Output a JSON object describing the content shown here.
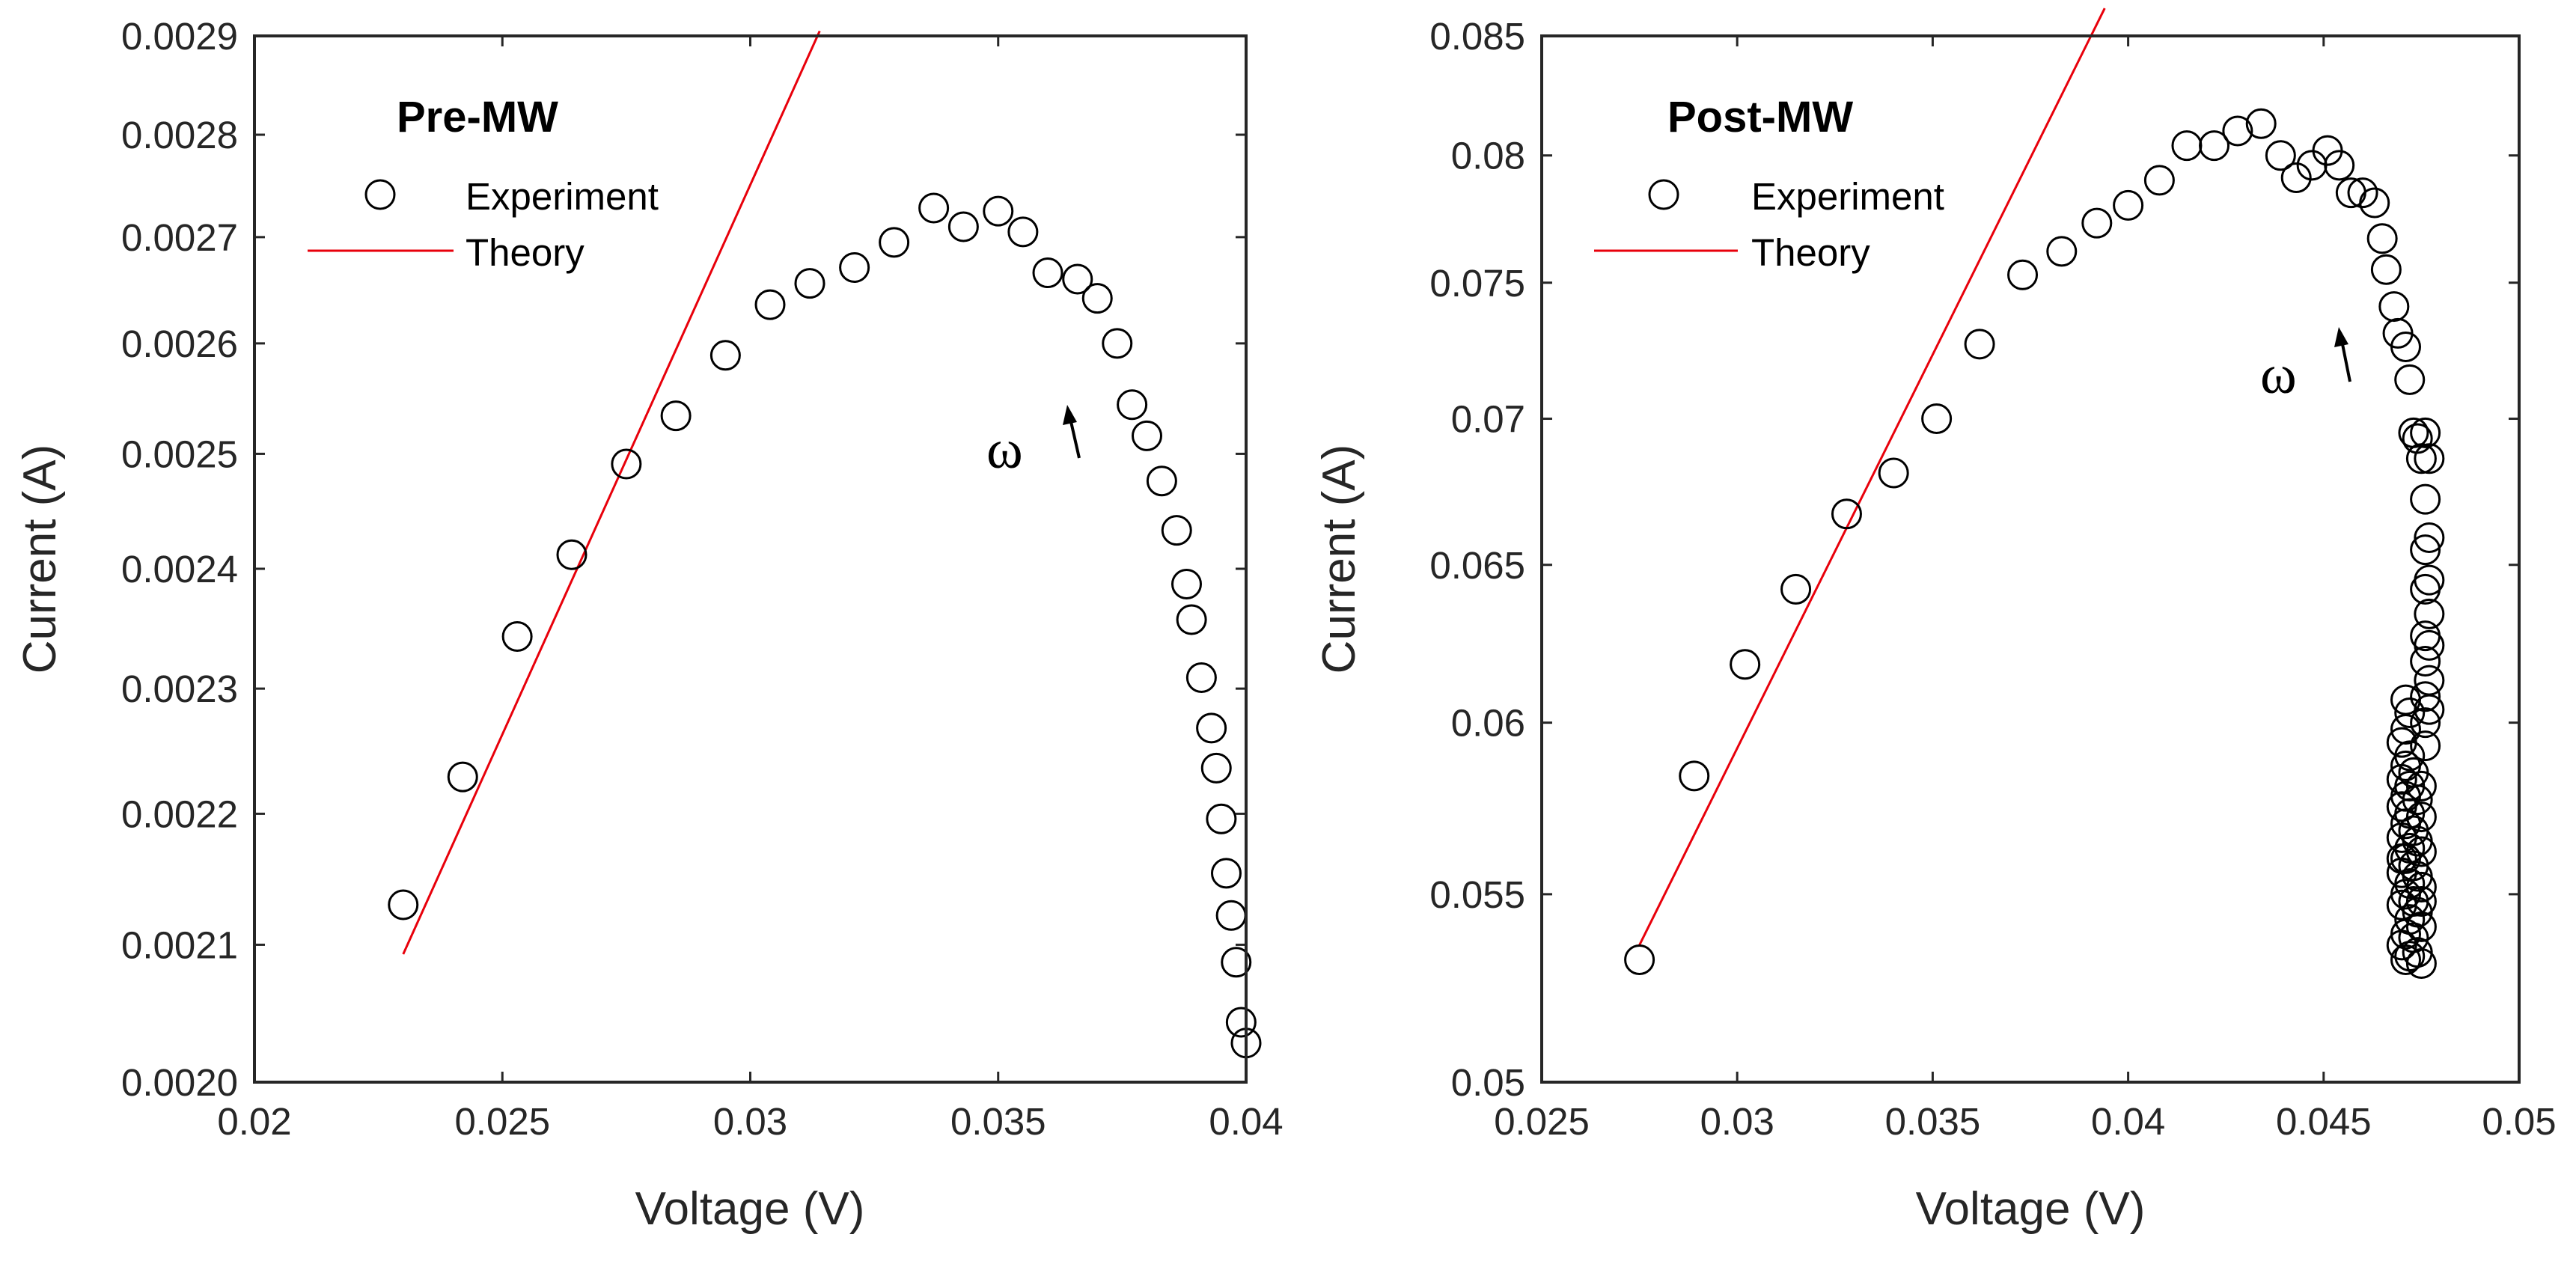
{
  "chart_data": [
    {
      "type": "scatter",
      "panel": "left",
      "title": "Pre-MW",
      "xlabel": "Voltage (V)",
      "ylabel": "Current (A)",
      "xlim": [
        0.02,
        0.04
      ],
      "ylim": [
        0.002,
        0.0029
      ],
      "y_scale": "log",
      "grid": false,
      "legend_placement": "top-left",
      "xticks": [
        0.02,
        0.025,
        0.03,
        0.035,
        0.04
      ],
      "xtick_labels": [
        "0.02",
        "0.025",
        "0.03",
        "0.035",
        "0.04"
      ],
      "yticks": [
        0.002,
        0.0021,
        0.0022,
        0.0023,
        0.0024,
        0.0025,
        0.0026,
        0.0027,
        0.0028,
        0.0029
      ],
      "ytick_labels": [
        "0.0020",
        "0.0021",
        "0.0022",
        "0.0023",
        "0.0024",
        "0.0025",
        "0.0026",
        "0.0027",
        "0.0028",
        "0.0029"
      ],
      "legend": [
        "Experiment",
        "Theory"
      ],
      "annotation": "ω",
      "series": [
        {
          "name": "Experiment",
          "style": "open-circle",
          "color": "#000000",
          "points": [
            [
              0.023,
              0.00213
            ],
            [
              0.0242,
              0.002229
            ],
            [
              0.0253,
              0.002343
            ],
            [
              0.0264,
              0.002412
            ],
            [
              0.0275,
              0.002491
            ],
            [
              0.0285,
              0.002534
            ],
            [
              0.0295,
              0.002589
            ],
            [
              0.0304,
              0.002636
            ],
            [
              0.0312,
              0.002656
            ],
            [
              0.0321,
              0.002671
            ],
            [
              0.0329,
              0.002695
            ],
            [
              0.0337,
              0.002728
            ],
            [
              0.0343,
              0.00271
            ],
            [
              0.035,
              0.002725
            ],
            [
              0.0355,
              0.002705
            ],
            [
              0.036,
              0.002666
            ],
            [
              0.0366,
              0.00266
            ],
            [
              0.037,
              0.002642
            ],
            [
              0.0374,
              0.0026
            ],
            [
              0.0377,
              0.002544
            ],
            [
              0.038,
              0.002516
            ],
            [
              0.0383,
              0.002476
            ],
            [
              0.0386,
              0.002433
            ],
            [
              0.0388,
              0.002387
            ],
            [
              0.0389,
              0.002357
            ],
            [
              0.0391,
              0.002309
            ],
            [
              0.0393,
              0.002268
            ],
            [
              0.0394,
              0.002236
            ],
            [
              0.0395,
              0.002196
            ],
            [
              0.0396,
              0.002154
            ],
            [
              0.0397,
              0.002122
            ],
            [
              0.0398,
              0.002087
            ],
            [
              0.0399,
              0.002043
            ],
            [
              0.04,
              0.002028
            ]
          ]
        },
        {
          "name": "Theory",
          "style": "line",
          "color": "#e8000b",
          "points": [
            [
              0.023,
              0.002093
            ],
            [
              0.0314,
              0.002905
            ]
          ]
        }
      ]
    },
    {
      "type": "scatter",
      "panel": "right",
      "title": "Post-MW",
      "xlabel": "Voltage (V)",
      "ylabel": "Current (A)",
      "xlim": [
        0.025,
        0.05
      ],
      "ylim": [
        0.05,
        0.085
      ],
      "y_scale": "log",
      "grid": false,
      "legend_placement": "top-left",
      "xticks": [
        0.025,
        0.03,
        0.035,
        0.04,
        0.045,
        0.05
      ],
      "xtick_labels": [
        "0.025",
        "0.03",
        "0.035",
        "0.04",
        "0.045",
        "0.05"
      ],
      "yticks": [
        0.05,
        0.055,
        0.06,
        0.065,
        0.07,
        0.075,
        0.08,
        0.085
      ],
      "ytick_labels": [
        "0.05",
        "0.055",
        "0.06",
        "0.065",
        "0.07",
        "0.075",
        "0.08",
        "0.085"
      ],
      "legend": [
        "Experiment",
        "Theory"
      ],
      "annotation": "ω",
      "series": [
        {
          "name": "Experiment",
          "style": "open-circle",
          "color": "#000000",
          "points": [
            [
              0.0275,
              0.0532
            ],
            [
              0.0289,
              0.0584
            ],
            [
              0.0302,
              0.0618
            ],
            [
              0.0315,
              0.0642
            ],
            [
              0.0328,
              0.0667
            ],
            [
              0.034,
              0.0681
            ],
            [
              0.0351,
              0.07
            ],
            [
              0.0362,
              0.0727
            ],
            [
              0.0373,
              0.0753
            ],
            [
              0.0383,
              0.0762
            ],
            [
              0.0392,
              0.0773
            ],
            [
              0.04,
              0.078
            ],
            [
              0.0408,
              0.079
            ],
            [
              0.0415,
              0.0804
            ],
            [
              0.0422,
              0.0804
            ],
            [
              0.0428,
              0.081
            ],
            [
              0.0434,
              0.0813
            ],
            [
              0.0439,
              0.08
            ],
            [
              0.0443,
              0.0791
            ],
            [
              0.0447,
              0.0796
            ],
            [
              0.0451,
              0.0802
            ],
            [
              0.0454,
              0.0796
            ],
            [
              0.0457,
              0.0785
            ],
            [
              0.046,
              0.0785
            ],
            [
              0.0463,
              0.0781
            ],
            [
              0.0465,
              0.0767
            ],
            [
              0.0466,
              0.0755
            ],
            [
              0.0468,
              0.0741
            ],
            [
              0.0469,
              0.0731
            ],
            [
              0.0471,
              0.0726
            ],
            [
              0.0472,
              0.0714
            ],
            [
              0.0473,
              0.0695
            ],
            [
              0.0474,
              0.0693
            ],
            [
              0.0476,
              0.0695
            ],
            [
              0.0475,
              0.0686
            ],
            [
              0.0477,
              0.0686
            ],
            [
              0.0476,
              0.0672
            ],
            [
              0.0477,
              0.0659
            ],
            [
              0.0476,
              0.0655
            ],
            [
              0.0477,
              0.0645
            ],
            [
              0.0476,
              0.0642
            ],
            [
              0.0477,
              0.0634
            ],
            [
              0.0476,
              0.0627
            ],
            [
              0.0477,
              0.0624
            ],
            [
              0.0476,
              0.0619
            ],
            [
              0.0477,
              0.0613
            ],
            [
              0.0476,
              0.0608
            ],
            [
              0.0477,
              0.0604
            ],
            [
              0.0476,
              0.06
            ],
            [
              0.0471,
              0.0607
            ],
            [
              0.0472,
              0.0603
            ],
            [
              0.0471,
              0.0598
            ],
            [
              0.047,
              0.0594
            ],
            [
              0.0472,
              0.059
            ],
            [
              0.0471,
              0.0587
            ],
            [
              0.0473,
              0.0585
            ],
            [
              0.047,
              0.0583
            ],
            [
              0.0472,
              0.0581
            ],
            [
              0.0475,
              0.0581
            ],
            [
              0.0471,
              0.0578
            ],
            [
              0.0474,
              0.0577
            ],
            [
              0.047,
              0.0575
            ],
            [
              0.0472,
              0.0573
            ],
            [
              0.0475,
              0.0572
            ],
            [
              0.0471,
              0.057
            ],
            [
              0.0473,
              0.0568
            ],
            [
              0.047,
              0.0566
            ],
            [
              0.0474,
              0.0565
            ],
            [
              0.0472,
              0.0563
            ],
            [
              0.0475,
              0.0562
            ],
            [
              0.0471,
              0.056
            ],
            [
              0.0473,
              0.0558
            ],
            [
              0.047,
              0.0556
            ],
            [
              0.0474,
              0.0555
            ],
            [
              0.0472,
              0.0553
            ],
            [
              0.0475,
              0.0552
            ],
            [
              0.0471,
              0.055
            ],
            [
              0.0473,
              0.0548
            ],
            [
              0.047,
              0.0547
            ],
            [
              0.0474,
              0.0545
            ],
            [
              0.0472,
              0.0543
            ],
            [
              0.0475,
              0.0541
            ],
            [
              0.0471,
              0.0539
            ],
            [
              0.0473,
              0.0538
            ],
            [
              0.047,
              0.0536
            ],
            [
              0.0474,
              0.0534
            ],
            [
              0.0472,
              0.0533
            ],
            [
              0.0475,
              0.0531
            ],
            [
              0.0471,
              0.0532
            ],
            [
              0.0476,
              0.0593
            ],
            [
              0.0475,
              0.0548
            ],
            [
              0.047,
              0.056
            ]
          ]
        },
        {
          "name": "Theory",
          "style": "line",
          "color": "#e8000b",
          "points": [
            [
              0.0275,
              0.0536
            ],
            [
              0.0394,
              0.0862
            ]
          ]
        }
      ]
    }
  ]
}
